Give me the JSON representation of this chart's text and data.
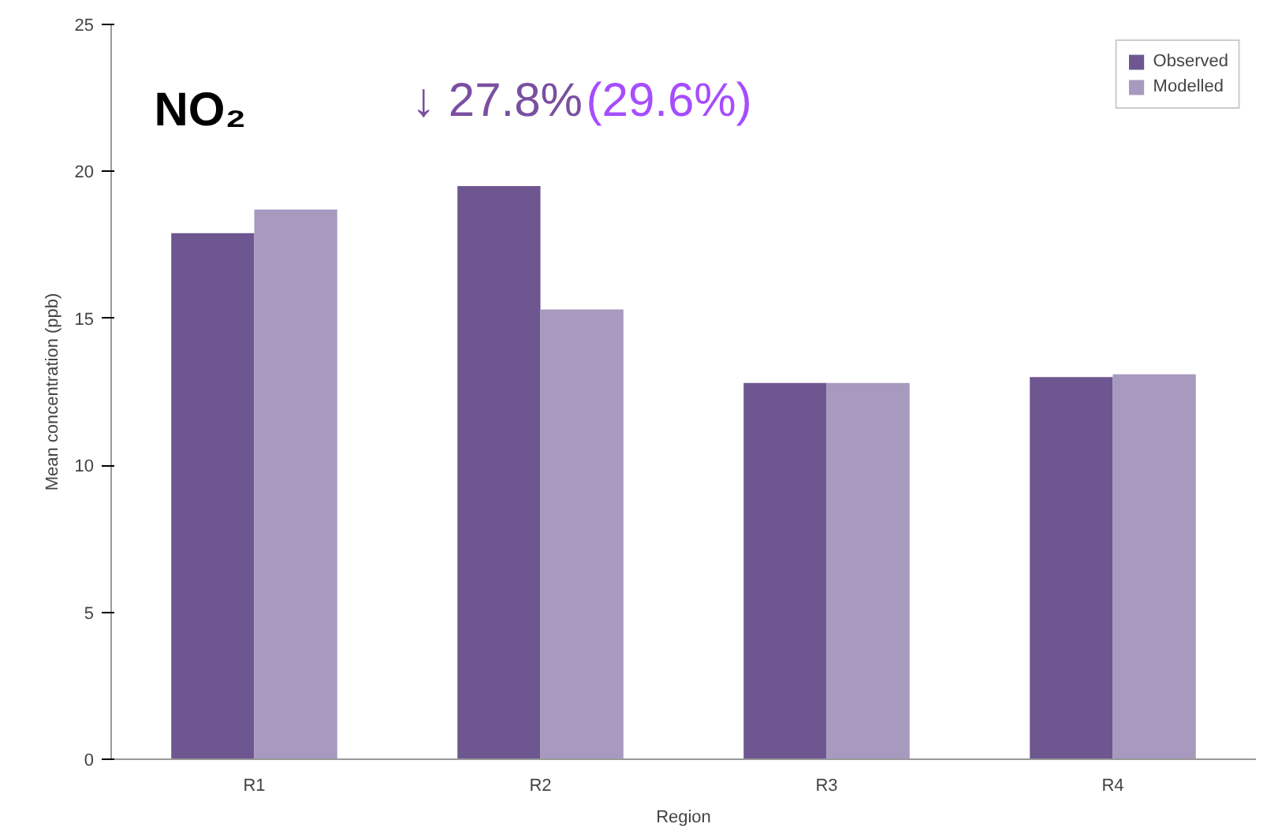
{
  "chart_data": {
    "type": "bar",
    "xlabel": "Region",
    "ylabel": "Mean concentration (ppb)",
    "categories": [
      "R1",
      "R2",
      "R3",
      "R4"
    ],
    "series": [
      {
        "name": "Observed",
        "color": "#6e5690",
        "values": [
          17.9,
          19.5,
          12.8,
          13.0
        ]
      },
      {
        "name": "Modelled",
        "color": "#a899be",
        "values": [
          18.7,
          15.3,
          12.8,
          13.1
        ]
      }
    ],
    "ylim": [
      0,
      25
    ],
    "yticks": [
      0,
      5,
      10,
      15,
      20,
      25
    ],
    "grid": false,
    "legend": "top right",
    "annotations": [
      "NO₂",
      "↓ 27.8%",
      "(29.6%)"
    ]
  }
}
